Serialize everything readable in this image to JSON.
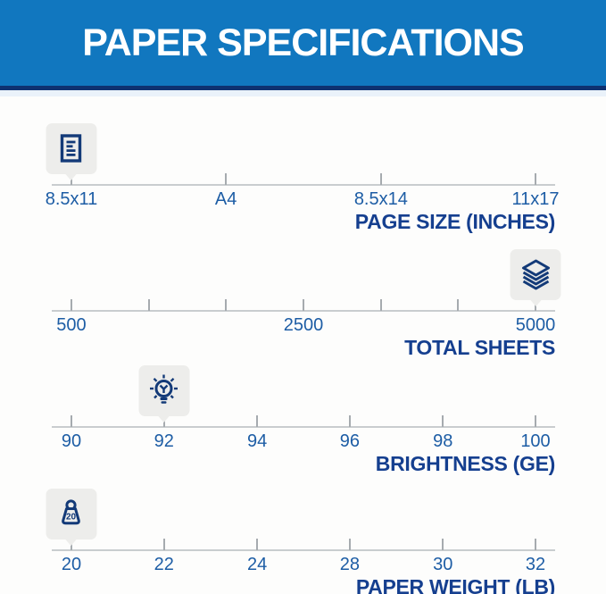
{
  "header": {
    "title": "PAPER SPECIFICATIONS"
  },
  "colors": {
    "header_bg": "#1177bf",
    "header_border": "#0e3170",
    "label_blue": "#1d5da5",
    "title_navy": "#153f8f",
    "icon_navy": "#133a78",
    "ruler_line": "#c9cdcf",
    "tick": "#a6abaf",
    "badge_bg": "#ededeb",
    "page_bg": "#fdfdfc"
  },
  "scales": [
    {
      "id": "page-size",
      "title": "PAGE SIZE (INCHES)",
      "icon": "document-icon",
      "marker_value": "8.5x11",
      "marker_pos": 3.9,
      "ticks": [
        {
          "pos": 3.9,
          "label": "8.5x11"
        },
        {
          "pos": 34.6,
          "label": "A4"
        },
        {
          "pos": 65.4,
          "label": "8.5x14"
        },
        {
          "pos": 96.1,
          "label": "11x17"
        }
      ]
    },
    {
      "id": "total-sheets",
      "title": "TOTAL SHEETS",
      "icon": "paper-stack-icon",
      "marker_value": "5000",
      "marker_pos": 96.1,
      "ticks": [
        {
          "pos": 3.9,
          "label": "500"
        },
        {
          "pos": 19.3,
          "label": ""
        },
        {
          "pos": 34.6,
          "label": ""
        },
        {
          "pos": 50.0,
          "label": "2500"
        },
        {
          "pos": 65.4,
          "label": ""
        },
        {
          "pos": 80.7,
          "label": ""
        },
        {
          "pos": 96.1,
          "label": "5000"
        }
      ]
    },
    {
      "id": "brightness",
      "title": "BRIGHTNESS (GE)",
      "icon": "lightbulb-icon",
      "marker_value": "92",
      "marker_pos": 22.3,
      "ticks": [
        {
          "pos": 3.9,
          "label": "90"
        },
        {
          "pos": 22.3,
          "label": "92"
        },
        {
          "pos": 40.8,
          "label": "94"
        },
        {
          "pos": 59.2,
          "label": "96"
        },
        {
          "pos": 77.7,
          "label": "98"
        },
        {
          "pos": 96.1,
          "label": "100"
        }
      ]
    },
    {
      "id": "paper-weight",
      "title": "PAPER WEIGHT (LB)",
      "icon": "weight-icon",
      "marker_value": "20",
      "marker_pos": 3.9,
      "ticks": [
        {
          "pos": 3.9,
          "label": "20"
        },
        {
          "pos": 22.3,
          "label": "22"
        },
        {
          "pos": 40.8,
          "label": "24"
        },
        {
          "pos": 59.2,
          "label": "28"
        },
        {
          "pos": 77.7,
          "label": "30"
        },
        {
          "pos": 96.1,
          "label": "32"
        }
      ]
    }
  ]
}
